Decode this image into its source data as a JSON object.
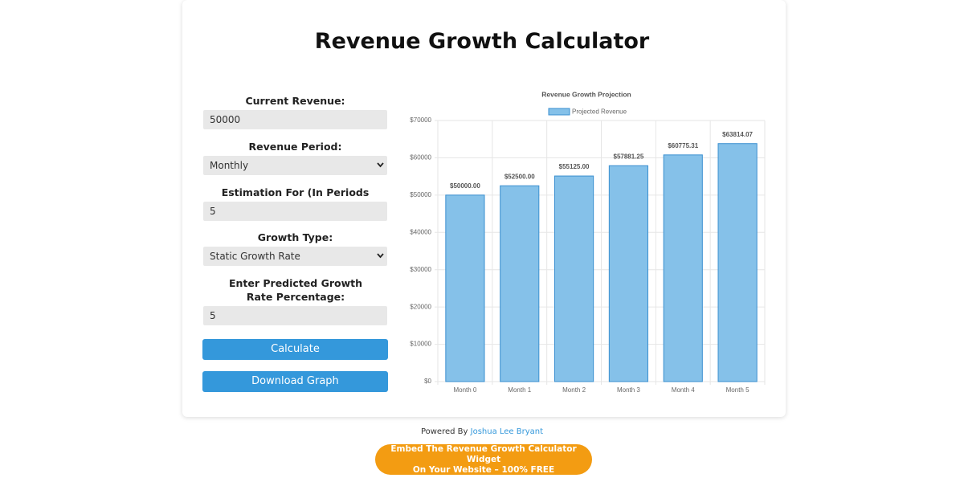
{
  "header": {
    "title": "Revenue Growth Calculator"
  },
  "form": {
    "fields": [
      {
        "label": "Current Revenue:",
        "value": "50000",
        "kind": "input"
      },
      {
        "label": "Revenue Period:",
        "value": "Monthly",
        "kind": "select"
      },
      {
        "label": "Estimation For (In Periods Selected):",
        "value": "5",
        "kind": "input"
      },
      {
        "label": "Growth Type:",
        "value": "Static Growth Rate",
        "kind": "select"
      },
      {
        "label": "Enter Predicted Growth Rate Percentage:",
        "value": "5",
        "kind": "input"
      }
    ],
    "buttons": [
      "Calculate",
      "Download Graph"
    ]
  },
  "chart_data": {
    "type": "bar",
    "title": "Revenue Growth Projection",
    "categories": [
      "Month 0",
      "Month 1",
      "Month 2",
      "Month 3",
      "Month 4",
      "Month 5"
    ],
    "series": [
      {
        "name": "Projected Revenue",
        "color": "#85c1e9",
        "values": [
          50000,
          52500,
          55125,
          57881.25,
          60775.31,
          63814.07
        ],
        "value_labels": [
          "$50000.00",
          "$52500.00",
          "$55125.00",
          "$57881.25",
          "$60775.31",
          "$63814.07"
        ]
      }
    ],
    "ylim": [
      0,
      70000
    ],
    "yticks": [
      {
        "value": 0,
        "label": "$0"
      },
      {
        "value": 10000,
        "label": "$10000"
      },
      {
        "value": 20000,
        "label": "$20000"
      },
      {
        "value": 30000,
        "label": "$30000"
      },
      {
        "value": 40000,
        "label": "$40000"
      },
      {
        "value": 50000,
        "label": "$50000"
      },
      {
        "value": 60000,
        "label": "$60000"
      },
      {
        "value": 70000,
        "label": "$70000"
      }
    ],
    "grid": true,
    "legend": "top"
  },
  "footer": {
    "powered_by": "Powered By",
    "author": "Joshua Lee Bryant",
    "embed_button": [
      "Embed The Revenue Growth Calculator Widget",
      "On Your Website – 100% FREE"
    ]
  }
}
